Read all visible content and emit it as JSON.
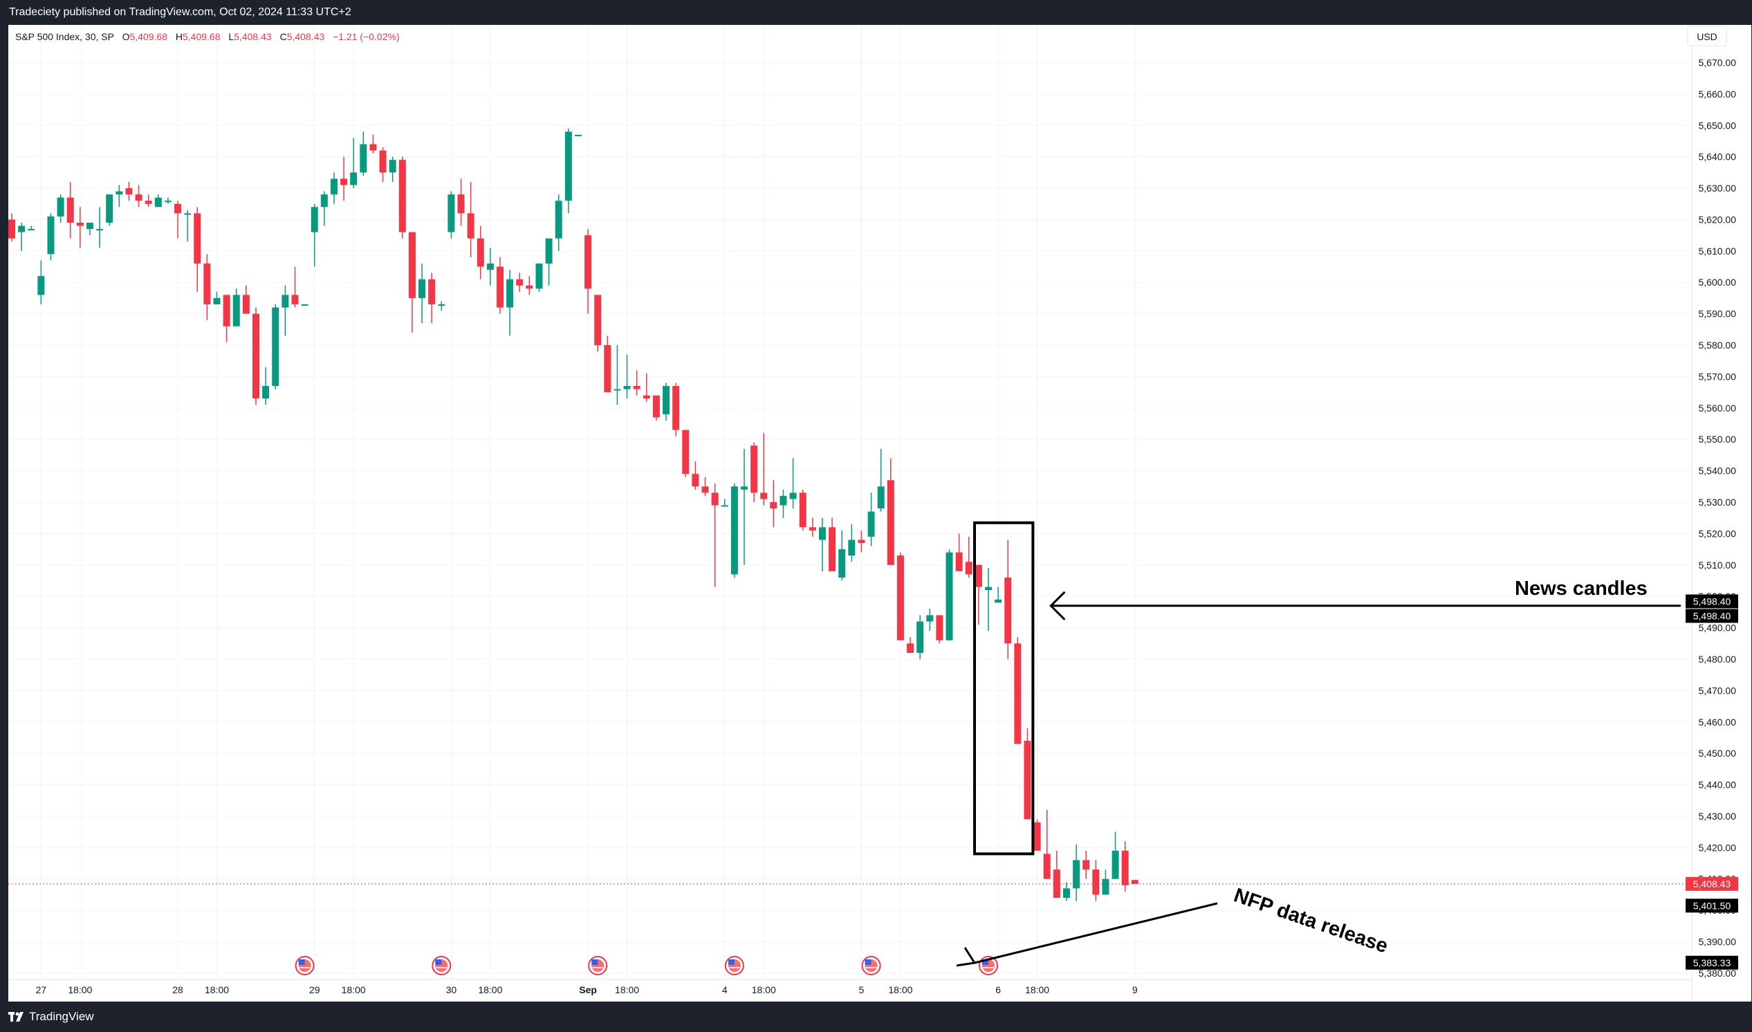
{
  "header": {
    "published": "Tradeciety published on TradingView.com, Oct 02, 2024 11:33 UTC+2"
  },
  "legend": {
    "symbol": "S&P 500 Index, 30, SP",
    "o_label": "O",
    "o_value": "5,409.68",
    "h_label": "H",
    "h_value": "5,409.68",
    "l_label": "L",
    "l_value": "5,408.43",
    "c_label": "C",
    "c_value": "5,408.43",
    "change": "−1.21 (−0.02%)"
  },
  "currency_label": "USD",
  "footer": {
    "brand": "TradingView"
  },
  "colors": {
    "up": "#089981",
    "down": "#f23645",
    "grid": "#f0f3fa",
    "axis_text": "#131722",
    "price_line": "#f23645"
  },
  "price_badges": [
    {
      "value": 5498.4,
      "text": "5,498.40",
      "bg": "#000000"
    },
    {
      "value": 5498.4,
      "text": "5,498.40",
      "bg": "#000000"
    },
    {
      "value": 5408.43,
      "text": "5,408.43",
      "bg": "#f23645"
    },
    {
      "value": 5401.5,
      "text": "5,401.50",
      "bg": "#000000"
    },
    {
      "value": 5383.33,
      "text": "5,383.33",
      "bg": "#000000"
    }
  ],
  "annotations": {
    "news_candles": "News candles",
    "nfp": "NFP data release"
  },
  "event_icon": "us-flag-economic-event-icon",
  "chart_data": {
    "type": "candlestick",
    "title": "S&P 500 Index, 30, SP",
    "ylim": [
      5378,
      5682
    ],
    "y_ticks": [
      5380,
      5390,
      5400,
      5410,
      5420,
      5430,
      5440,
      5450,
      5460,
      5470,
      5480,
      5490,
      5500,
      5510,
      5520,
      5530,
      5540,
      5550,
      5560,
      5570,
      5580,
      5590,
      5600,
      5610,
      5620,
      5630,
      5640,
      5650,
      5660,
      5670
    ],
    "y_tick_labels": [
      "5,380.00",
      "5,390.00",
      "5,400.00",
      "5,410.00",
      "5,420.00",
      "5,430.00",
      "5,440.00",
      "5,450.00",
      "5,460.00",
      "5,470.00",
      "5,480.00",
      "5,490.00",
      "5,500.00",
      "5,510.00",
      "5,520.00",
      "5,530.00",
      "5,540.00",
      "5,550.00",
      "5,560.00",
      "5,570.00",
      "5,580.00",
      "5,590.00",
      "5,600.00",
      "5,610.00",
      "5,620.00",
      "5,630.00",
      "5,640.00",
      "5,650.00",
      "5,660.00",
      "5,670.00"
    ],
    "x_tick_labels": [
      {
        "label": "27",
        "bar": 3,
        "bold": false
      },
      {
        "label": "18:00",
        "bar": 7,
        "bold": false
      },
      {
        "label": "28",
        "bar": 17,
        "bold": false
      },
      {
        "label": "18:00",
        "bar": 21,
        "bold": false
      },
      {
        "label": "29",
        "bar": 31,
        "bold": false
      },
      {
        "label": "18:00",
        "bar": 35,
        "bold": false
      },
      {
        "label": "30",
        "bar": 45,
        "bold": false
      },
      {
        "label": "18:00",
        "bar": 49,
        "bold": false
      },
      {
        "label": "Sep",
        "bar": 59,
        "bold": true
      },
      {
        "label": "18:00",
        "bar": 63,
        "bold": false
      },
      {
        "label": "4",
        "bar": 73,
        "bold": false
      },
      {
        "label": "18:00",
        "bar": 77,
        "bold": false
      },
      {
        "label": "5",
        "bar": 87,
        "bold": false
      },
      {
        "label": "18:00",
        "bar": 91,
        "bold": false
      },
      {
        "label": "6",
        "bar": 101,
        "bold": false
      },
      {
        "label": "18:00",
        "bar": 105,
        "bold": false
      },
      {
        "label": "9",
        "bar": 115,
        "bold": false
      }
    ],
    "event_bars": [
      30,
      44,
      60,
      74,
      88,
      100
    ],
    "news_candle_bars": [
      100,
      103
    ],
    "nfp_release_bar": 100,
    "last_price": 5408.43,
    "candles": [
      [
        5620,
        5622,
        5613,
        5614
      ],
      [
        5616,
        5619,
        5610,
        5618
      ],
      [
        5617,
        5618,
        5617,
        5617
      ],
      [
        5596,
        5607,
        5593,
        5602
      ],
      [
        5609,
        5622,
        5607,
        5621
      ],
      [
        5621,
        5628,
        5619,
        5627
      ],
      [
        5627,
        5632,
        5614,
        5619
      ],
      [
        5619,
        5624,
        5611,
        5618
      ],
      [
        5617,
        5619,
        5615,
        5619
      ],
      [
        5617,
        5624,
        5611,
        5617
      ],
      [
        5619,
        5628,
        5618,
        5628
      ],
      [
        5628,
        5631,
        5624,
        5629
      ],
      [
        5630,
        5632,
        5626,
        5628
      ],
      [
        5628,
        5631,
        5624,
        5626
      ],
      [
        5626,
        5628,
        5624,
        5625
      ],
      [
        5624,
        5628,
        5624,
        5627
      ],
      [
        5626,
        5627,
        5625,
        5626
      ],
      [
        5625,
        5626,
        5614,
        5622
      ],
      [
        5622,
        5623,
        5613,
        5622
      ],
      [
        5622,
        5624,
        5597,
        5606
      ],
      [
        5606,
        5609,
        5588,
        5593
      ],
      [
        5593,
        5597,
        5593,
        5595
      ],
      [
        5596,
        5596,
        5581,
        5586
      ],
      [
        5586,
        5598,
        5586,
        5596
      ],
      [
        5596,
        5599,
        5590,
        5590
      ],
      [
        5590,
        5592,
        5561,
        5563
      ],
      [
        5563,
        5573,
        5561,
        5567
      ],
      [
        5567,
        5593,
        5566,
        5592
      ],
      [
        5592,
        5599,
        5583,
        5596
      ],
      [
        5596,
        5605,
        5592,
        5593
      ],
      [
        5593,
        5593,
        5593,
        5593
      ],
      [
        5616,
        5625,
        5605,
        5624
      ],
      [
        5624,
        5629,
        5618,
        5628
      ],
      [
        5628,
        5635,
        5625,
        5633
      ],
      [
        5633,
        5640,
        5626,
        5631
      ],
      [
        5631,
        5646,
        5630,
        5635
      ],
      [
        5635,
        5648,
        5634,
        5644
      ],
      [
        5644,
        5647,
        5641,
        5642
      ],
      [
        5642,
        5643,
        5632,
        5635
      ],
      [
        5635,
        5640,
        5632,
        5639
      ],
      [
        5639,
        5640,
        5614,
        5616
      ],
      [
        5616,
        5616,
        5584,
        5595
      ],
      [
        5595,
        5606,
        5587,
        5601
      ],
      [
        5601,
        5603,
        5587,
        5593
      ],
      [
        5593,
        5594,
        5591,
        5593
      ],
      [
        5616,
        5629,
        5614,
        5628
      ],
      [
        5628,
        5633,
        5618,
        5622
      ],
      [
        5622,
        5632,
        5608,
        5614
      ],
      [
        5614,
        5618,
        5601,
        5605
      ],
      [
        5604,
        5611,
        5599,
        5606
      ],
      [
        5605,
        5608,
        5590,
        5592
      ],
      [
        5592,
        5604,
        5583,
        5601
      ],
      [
        5601,
        5603,
        5597,
        5599
      ],
      [
        5599,
        5602,
        5596,
        5598
      ],
      [
        5598,
        5605,
        5597,
        5606
      ],
      [
        5606,
        5614,
        5599,
        5614
      ],
      [
        5614,
        5628,
        5610,
        5626
      ],
      [
        5626,
        5649,
        5622,
        5648
      ],
      [
        5647,
        5647,
        5647,
        5647
      ],
      [
        5615,
        5617,
        5590,
        5598
      ],
      [
        5596,
        5596,
        5578,
        5580
      ],
      [
        5580,
        5583,
        5567,
        5565
      ],
      [
        5566,
        5580,
        5561,
        5566
      ],
      [
        5566,
        5577,
        5563,
        5567
      ],
      [
        5567,
        5572,
        5564,
        5566
      ],
      [
        5564,
        5571,
        5562,
        5563
      ],
      [
        5564,
        5563,
        5556,
        5557
      ],
      [
        5558,
        5568,
        5556,
        5567
      ],
      [
        5567,
        5568,
        5551,
        5553
      ],
      [
        5553,
        5553,
        5538,
        5539
      ],
      [
        5539,
        5543,
        5534,
        5535
      ],
      [
        5535,
        5538,
        5532,
        5533
      ],
      [
        5533,
        5536,
        5503,
        5529
      ],
      [
        5529,
        5531,
        5529,
        5529
      ],
      [
        5507,
        5536,
        5506,
        5535
      ],
      [
        5534,
        5547,
        5510,
        5535
      ],
      [
        5548,
        5549,
        5530,
        5533
      ],
      [
        5533,
        5552,
        5529,
        5531
      ],
      [
        5530,
        5537,
        5522,
        5528
      ],
      [
        5529,
        5534,
        5525,
        5532
      ],
      [
        5531,
        5544,
        5528,
        5533
      ],
      [
        5533,
        5534,
        5521,
        5522
      ],
      [
        5522,
        5525,
        5519,
        5521
      ],
      [
        5518,
        5525,
        5508,
        5522
      ],
      [
        5522,
        5525,
        5508,
        5508
      ],
      [
        5506,
        5521,
        5505,
        5515
      ],
      [
        5513,
        5523,
        5511,
        5518
      ],
      [
        5518,
        5521,
        5514,
        5517
      ],
      [
        5519,
        5533,
        5516,
        5527
      ],
      [
        5528,
        5547,
        5527,
        5535
      ],
      [
        5537,
        5544,
        5512,
        5510
      ],
      [
        5513,
        5514,
        5486,
        5486
      ],
      [
        5485,
        5487,
        5482,
        5482
      ],
      [
        5482,
        5494,
        5480,
        5492
      ],
      [
        5492,
        5496,
        5489,
        5494
      ],
      [
        5494,
        5492,
        5485,
        5486
      ],
      [
        5486,
        5515,
        5486,
        5514
      ],
      [
        5514,
        5520,
        5508,
        5508
      ],
      [
        5511,
        5519,
        5506,
        5507
      ],
      [
        5510,
        5510,
        5491,
        5503
      ],
      [
        5502,
        5509,
        5489,
        5503
      ],
      [
        5498,
        5503,
        5498,
        5499
      ],
      [
        5506,
        5518,
        5480,
        5485
      ],
      [
        5485,
        5487,
        5455,
        5453
      ],
      [
        5454,
        5458,
        5429,
        5429
      ],
      [
        5428,
        5429,
        5419,
        5419
      ],
      [
        5418,
        5432,
        5411,
        5410
      ],
      [
        5413,
        5419,
        5404,
        5404
      ],
      [
        5404,
        5409,
        5403,
        5407
      ],
      [
        5407,
        5421,
        5403,
        5416
      ],
      [
        5416,
        5419,
        5410,
        5413
      ],
      [
        5413,
        5416,
        5403,
        5405
      ],
      [
        5405,
        5413,
        5405,
        5410
      ],
      [
        5410,
        5425,
        5410,
        5419
      ],
      [
        5419,
        5422,
        5406,
        5408
      ],
      [
        5409.68,
        5409.68,
        5408.43,
        5408.43
      ]
    ]
  }
}
